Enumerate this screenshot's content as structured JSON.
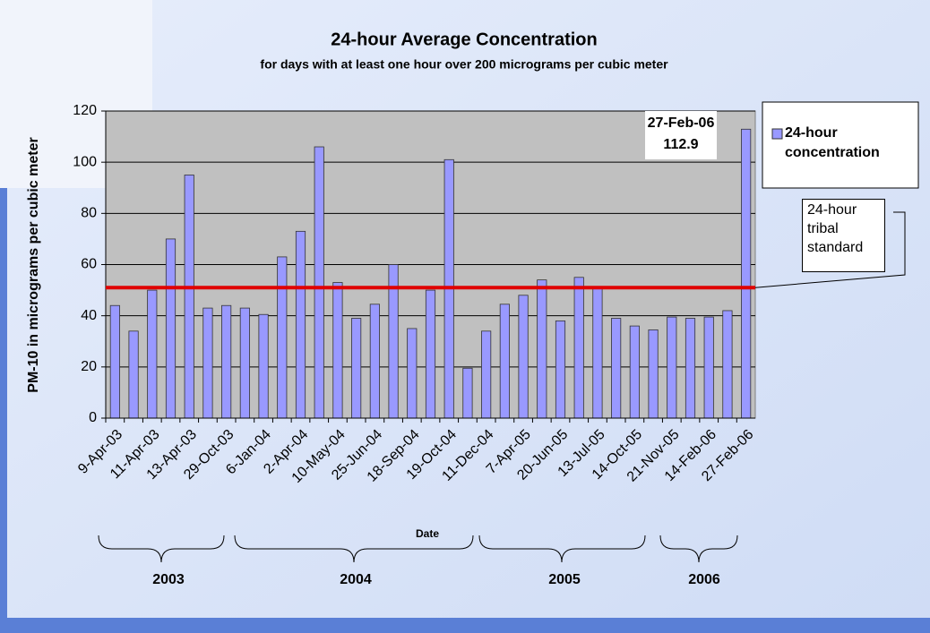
{
  "chart_data": {
    "type": "bar",
    "title": "24-hour Average Concentration",
    "subtitle": "for days with at least one hour over 200 micrograms per cubic meter",
    "x_label": "Date",
    "y_label": "PM-10 in micrograms per cubic meter",
    "categories": [
      "9-Apr-03",
      null,
      "11-Apr-03",
      null,
      "13-Apr-03",
      null,
      "29-Oct-03",
      null,
      "6-Jan-04",
      null,
      "2-Apr-04",
      null,
      "10-May-04",
      null,
      "25-Jun-04",
      null,
      "18-Sep-04",
      null,
      "19-Oct-04",
      null,
      "11-Dec-04",
      null,
      "7-Apr-05",
      null,
      "20-Jun-05",
      null,
      "13-Jul-05",
      null,
      "14-Oct-05",
      null,
      "21-Nov-05",
      null,
      "14-Feb-06",
      null,
      "27-Feb-06"
    ],
    "series": [
      {
        "name": "24-hour concentration",
        "color": "#9999ff",
        "values": [
          44,
          34,
          50,
          70,
          95,
          43,
          44,
          43,
          40.5,
          63,
          73,
          106,
          53,
          39,
          44.5,
          60,
          35,
          50,
          101,
          19.5,
          34,
          44.5,
          48,
          54,
          38,
          55,
          51,
          39,
          36,
          34.5,
          39.5,
          39,
          39.5,
          42,
          112.9
        ]
      }
    ],
    "ylim": [
      0,
      120
    ],
    "yticks": [
      0,
      20,
      40,
      60,
      80,
      100,
      120
    ],
    "grid": true,
    "legend": "right",
    "reference_line": {
      "label": "24-hour tribal standard",
      "value": 51,
      "color": "#e00000"
    },
    "year_groups": [
      "2003",
      "2004",
      "2005",
      "2006"
    ]
  }
}
